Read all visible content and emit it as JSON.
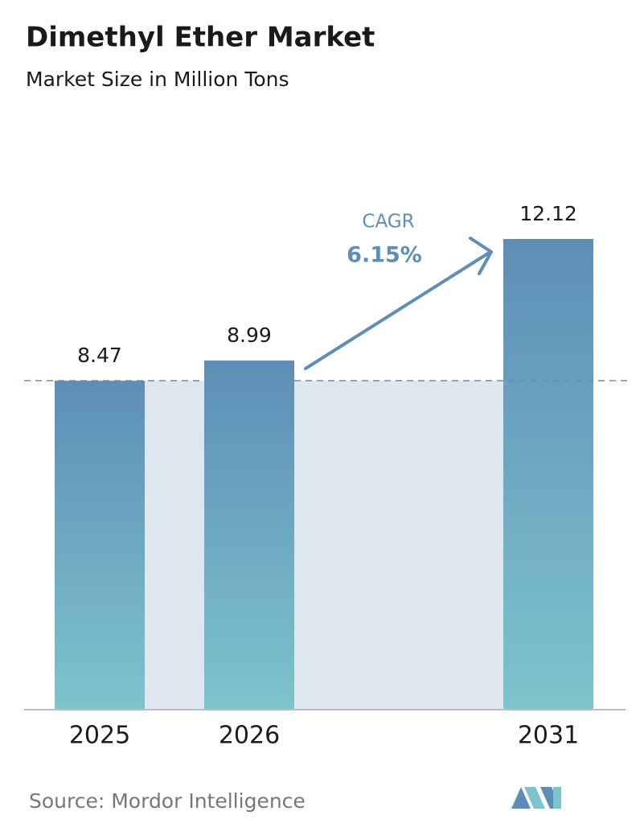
{
  "chart_data": {
    "type": "bar",
    "title": "Dimethyl Ether Market",
    "subtitle": "Market Size in Million Tons",
    "categories": [
      "2025",
      "2026",
      "2031"
    ],
    "values": [
      8.47,
      8.99,
      12.12
    ],
    "gradient": [
      "#5e8eb7",
      "#7dc4cc"
    ],
    "annotation": {
      "label": "CAGR",
      "value": "6.15%"
    },
    "source": "Source:  Mordor Intelligence"
  }
}
